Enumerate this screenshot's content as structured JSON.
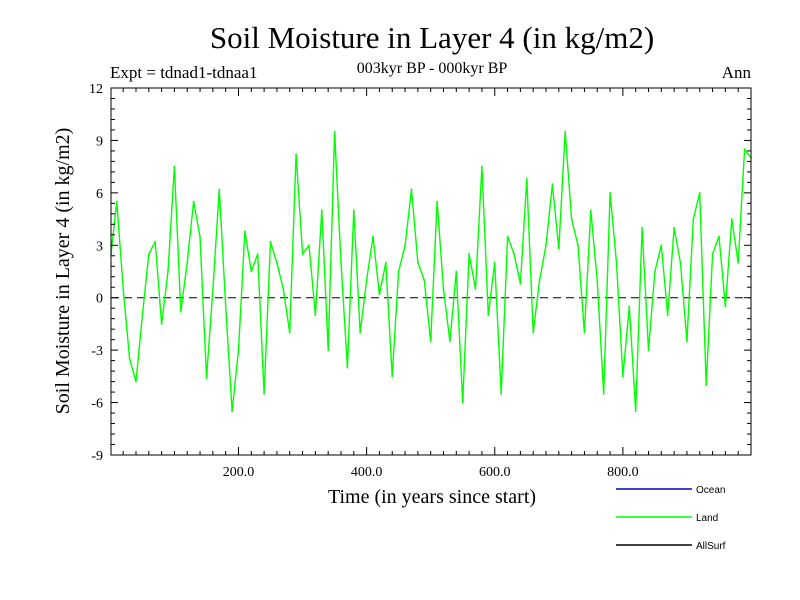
{
  "header": {
    "title": "Soil Moisture in Layer 4 (in kg/m2)",
    "subtitle": "003kyr BP - 000kyr BP",
    "expt": "Expt = tdnad1-tdnaa1",
    "season": "Ann"
  },
  "chart_data": {
    "type": "line",
    "title": "Soil Moisture in Layer 4 (in kg/m2)",
    "subtitle": "003kyr BP - 000kyr BP",
    "xlabel": "Time (in years since start)",
    "ylabel": "Soil Moisture in Layer 4 (in kg/m2)",
    "xlim": [
      1,
      1000
    ],
    "ylim": [
      -9,
      12
    ],
    "x_ticks": [
      200,
      400,
      600,
      800
    ],
    "x_tick_labels": [
      "200.0",
      "400.0",
      "600.0",
      "800.0"
    ],
    "y_ticks": [
      -9,
      -6,
      -3,
      0,
      3,
      6,
      9,
      12
    ],
    "y_tick_labels": [
      "-9",
      "-6",
      "-3",
      "0",
      "3",
      "6",
      "9",
      "12"
    ],
    "zero_line": true,
    "legend_position": "bottom-right",
    "legend": [
      {
        "name": "Ocean",
        "color": "#0000cc"
      },
      {
        "name": "Land",
        "color": "#00ff00"
      },
      {
        "name": "AllSurf",
        "color": "#000000"
      }
    ],
    "series": [
      {
        "name": "Land",
        "color": "#00ff00",
        "x": [
          1,
          10,
          20,
          30,
          40,
          50,
          60,
          70,
          80,
          90,
          100,
          110,
          120,
          130,
          140,
          150,
          160,
          170,
          180,
          190,
          200,
          210,
          220,
          230,
          240,
          250,
          260,
          270,
          280,
          290,
          300,
          310,
          320,
          330,
          340,
          350,
          360,
          370,
          380,
          390,
          400,
          410,
          420,
          430,
          440,
          450,
          460,
          470,
          480,
          490,
          500,
          510,
          520,
          530,
          540,
          550,
          560,
          570,
          580,
          590,
          600,
          610,
          620,
          630,
          640,
          650,
          660,
          670,
          680,
          690,
          700,
          710,
          720,
          730,
          740,
          750,
          760,
          770,
          780,
          790,
          800,
          810,
          820,
          830,
          840,
          850,
          860,
          870,
          880,
          890,
          900,
          910,
          920,
          930,
          940,
          950,
          960,
          970,
          980,
          990,
          1000
        ],
        "values": [
          2.5,
          5.5,
          0.5,
          -3.5,
          -4.8,
          -1.0,
          2.5,
          3.2,
          -1.5,
          1.5,
          7.5,
          -0.8,
          2.0,
          5.5,
          3.5,
          -4.6,
          0.5,
          6.2,
          -0.5,
          -6.5,
          -3.0,
          3.8,
          1.5,
          2.5,
          -5.5,
          3.2,
          2.0,
          0.5,
          -2.0,
          8.2,
          2.5,
          3.0,
          -1.0,
          5.0,
          -3.0,
          9.5,
          2.0,
          -4.0,
          5.0,
          -2.0,
          1.0,
          3.5,
          0.2,
          2.0,
          -4.5,
          1.5,
          3.0,
          6.2,
          2.0,
          1.0,
          -2.5,
          5.5,
          0.5,
          -2.5,
          1.5,
          -6.0,
          2.5,
          0.5,
          7.5,
          -1.0,
          2.0,
          -5.5,
          3.5,
          2.5,
          0.8,
          6.8,
          -2.0,
          1.0,
          3.0,
          6.5,
          2.8,
          9.5,
          4.5,
          3.0,
          -2.0,
          5.0,
          1.0,
          -5.5,
          6.0,
          2.0,
          -4.5,
          -0.5,
          -6.5,
          4.0,
          -3.0,
          1.5,
          3.0,
          -1.0,
          4.0,
          2.0,
          -2.5,
          4.5,
          6.0,
          -5.0,
          2.5,
          3.5,
          -0.5,
          4.5,
          2.0,
          8.5,
          8.0
        ]
      }
    ]
  }
}
